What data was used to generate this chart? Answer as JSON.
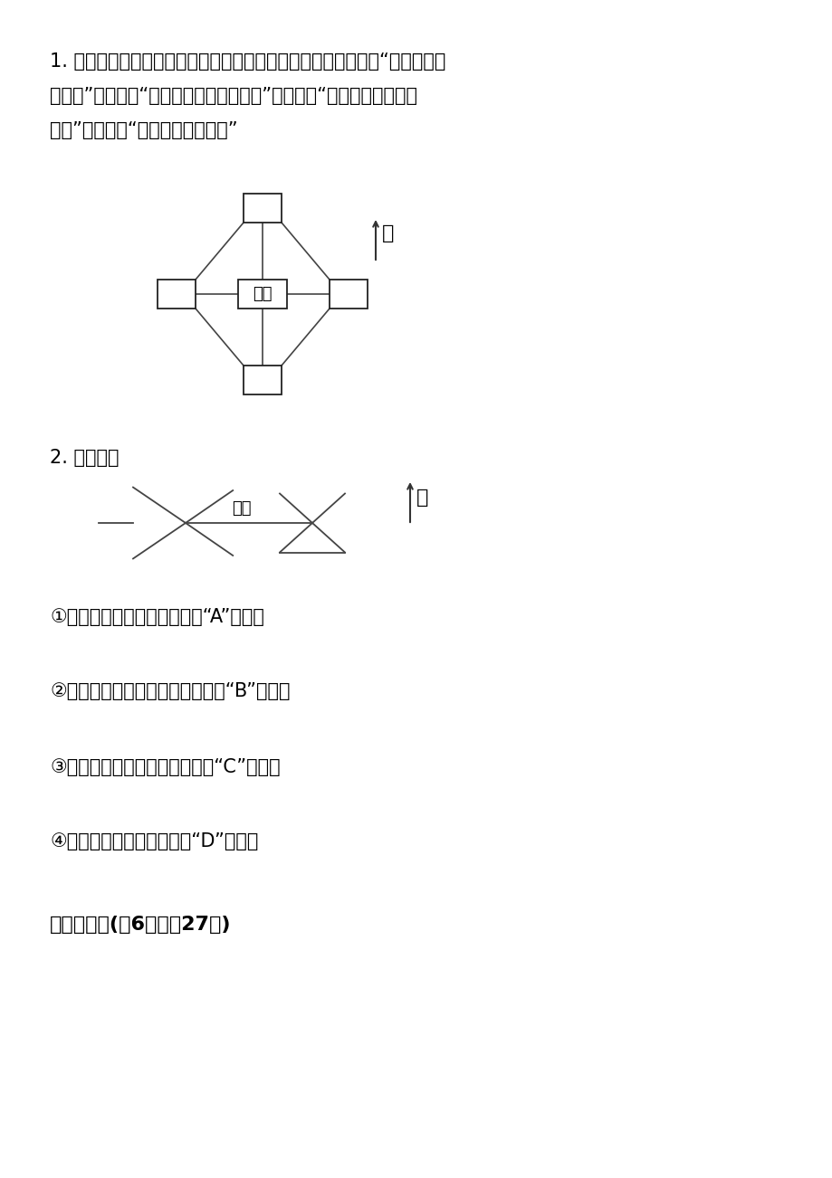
{
  "background_color": "#ffffff",
  "text_color": "#000000",
  "paragraph1_line1": "1. 先分析每个人的对话，再在图中注明每个人的位置。小辉说：“我在小静的",
  "paragraph1_line2": "南面。”小峰说：“我在小辉的东北方向。”小秀说：“我在小峰的西北方",
  "paragraph1_line3": "向。”小冬说：“我在小静的西面。”",
  "diagram1_center_label": "小静",
  "diagram1_north_label": "北",
  "paragraph2": "2. 找位置。",
  "diagram2_park_label": "公园",
  "diagram2_north_label": "北",
  "q1": "①小刚的家在公园的西面，用“A”标出。",
  "q2": "②电影院在小刚家的西南方向，用“B”标出。",
  "q3": "③百货大楼在公园的东南面，用“C”标出。",
  "q4": "④法院在公园的东北面，用“D”标出。",
  "section_title": "六．解答题(兲6题，內27分)"
}
